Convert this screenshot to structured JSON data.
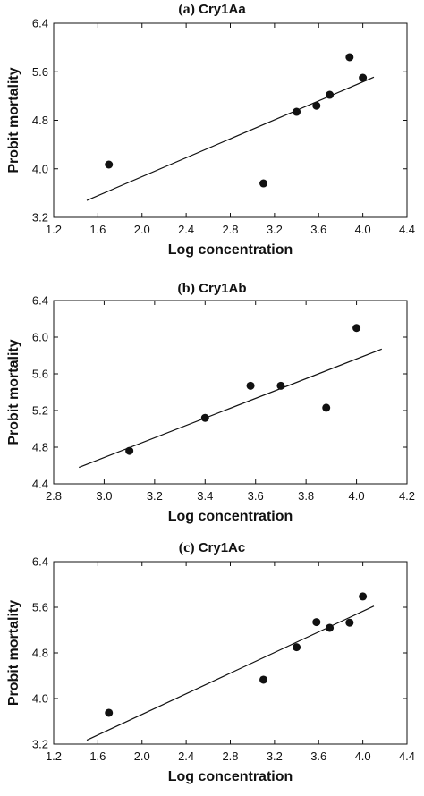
{
  "chart_data": [
    {
      "type": "scatter",
      "panel_letter": "(a)",
      "title": "Cry1Aa",
      "xlabel": "Log concentration",
      "ylabel": "Probit mortality",
      "xlim": [
        1.2,
        4.4
      ],
      "ylim": [
        3.2,
        6.4
      ],
      "xticks": [
        "1.2",
        "1.6",
        "2.0",
        "2.4",
        "2.8",
        "3.2",
        "3.6",
        "4.0",
        "4.4"
      ],
      "yticks": [
        "3.2",
        "4.0",
        "4.8",
        "5.6",
        "6.4"
      ],
      "points": [
        {
          "x": 1.7,
          "y": 4.07
        },
        {
          "x": 3.1,
          "y": 3.76
        },
        {
          "x": 3.4,
          "y": 4.94
        },
        {
          "x": 3.58,
          "y": 5.04
        },
        {
          "x": 3.7,
          "y": 5.22
        },
        {
          "x": 3.88,
          "y": 5.84
        },
        {
          "x": 4.0,
          "y": 5.5
        }
      ],
      "fit_line": [
        {
          "x": 1.5,
          "y": 3.48
        },
        {
          "x": 4.1,
          "y": 5.51
        }
      ]
    },
    {
      "type": "scatter",
      "panel_letter": "(b)",
      "title": "Cry1Ab",
      "xlabel": "Log concentration",
      "ylabel": "Probit mortality",
      "xlim": [
        2.8,
        4.2
      ],
      "ylim": [
        4.4,
        6.4
      ],
      "xticks": [
        "2.8",
        "3.0",
        "3.2",
        "3.4",
        "3.6",
        "3.8",
        "4.0",
        "4.2"
      ],
      "yticks": [
        "4.4",
        "4.8",
        "5.2",
        "5.6",
        "6.0",
        "6.4"
      ],
      "points": [
        {
          "x": 3.1,
          "y": 4.76
        },
        {
          "x": 3.4,
          "y": 5.12
        },
        {
          "x": 3.58,
          "y": 5.47
        },
        {
          "x": 3.7,
          "y": 5.47
        },
        {
          "x": 3.88,
          "y": 5.23
        },
        {
          "x": 4.0,
          "y": 6.1
        }
      ],
      "fit_line": [
        {
          "x": 2.9,
          "y": 4.58
        },
        {
          "x": 4.1,
          "y": 5.87
        }
      ]
    },
    {
      "type": "scatter",
      "panel_letter": "(c)",
      "title": "Cry1Ac",
      "xlabel": "Log concentration",
      "ylabel": "Probit mortality",
      "xlim": [
        1.2,
        4.4
      ],
      "ylim": [
        3.2,
        6.4
      ],
      "xticks": [
        "1.2",
        "1.6",
        "2.0",
        "2.4",
        "2.8",
        "3.2",
        "3.6",
        "4.0",
        "4.4"
      ],
      "yticks": [
        "3.2",
        "4.0",
        "4.8",
        "5.6",
        "6.4"
      ],
      "points": [
        {
          "x": 1.7,
          "y": 3.75
        },
        {
          "x": 3.1,
          "y": 4.33
        },
        {
          "x": 3.4,
          "y": 4.9
        },
        {
          "x": 3.58,
          "y": 5.34
        },
        {
          "x": 3.7,
          "y": 5.24
        },
        {
          "x": 3.88,
          "y": 5.33
        },
        {
          "x": 4.0,
          "y": 5.79
        }
      ],
      "fit_line": [
        {
          "x": 1.5,
          "y": 3.27
        },
        {
          "x": 4.1,
          "y": 5.62
        }
      ]
    }
  ]
}
